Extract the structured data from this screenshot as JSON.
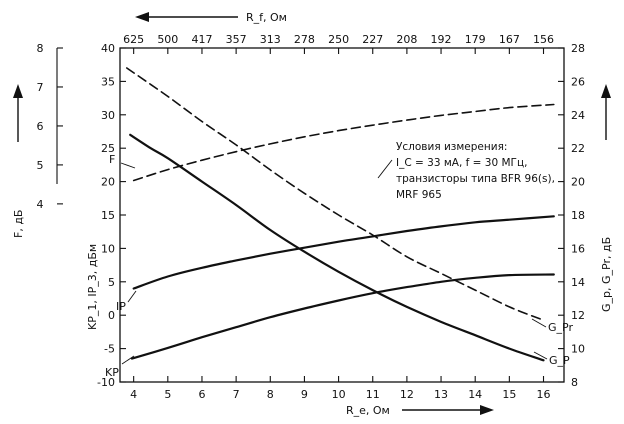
{
  "chart_data": {
    "type": "line",
    "x_axis_bottom": {
      "label": "R_e, Ом",
      "ticks": [
        4,
        5,
        6,
        7,
        8,
        9,
        10,
        11,
        12,
        13,
        14,
        15,
        16
      ],
      "range": [
        3.6,
        16.6
      ]
    },
    "x_axis_top": {
      "label": "R_f, Ом",
      "ticks": [
        "625",
        "500",
        "417",
        "357",
        "313",
        "278",
        "250",
        "227",
        "208",
        "192",
        "179",
        "167",
        "156"
      ]
    },
    "y_axis_left_inner": {
      "label": "KP_1, IP_3, дБм",
      "ticks": [
        -10,
        -5,
        0,
        5,
        10,
        15,
        20,
        25,
        30,
        35,
        40
      ],
      "range": [
        -10,
        40
      ]
    },
    "y_axis_left_outer": {
      "label": "F, дБ",
      "ticks": [
        4,
        5,
        6,
        7,
        8
      ],
      "range": [
        -0.571,
        8
      ]
    },
    "y_axis_right": {
      "label": "G_p, G_Pr, дБ",
      "ticks": [
        8,
        10,
        12,
        14,
        16,
        18,
        20,
        22,
        24,
        26,
        28
      ],
      "range": [
        8,
        28
      ]
    },
    "series": [
      {
        "name": "F",
        "axis": "left_outer",
        "style": "dashed",
        "x": [
          4.0,
          5.0,
          6.0,
          7.0,
          8.0,
          9.0,
          10.0,
          11.0,
          12.0,
          13.0,
          14.0,
          15.0,
          16.3
        ],
        "y": [
          4.6,
          4.88,
          5.12,
          5.34,
          5.54,
          5.72,
          5.88,
          6.02,
          6.15,
          6.27,
          6.37,
          6.47,
          6.55
        ]
      },
      {
        "name": "IP",
        "axis": "left_inner",
        "style": "solid",
        "x": [
          4.0,
          5.0,
          6.0,
          7.0,
          8.0,
          9.0,
          10.0,
          11.0,
          12.0,
          13.0,
          14.0,
          15.0,
          16.3
        ],
        "y": [
          4.0,
          5.8,
          7.1,
          8.2,
          9.2,
          10.1,
          11.0,
          11.8,
          12.6,
          13.3,
          13.9,
          14.3,
          14.8
        ]
      },
      {
        "name": "KP",
        "axis": "left_inner",
        "style": "solid",
        "x": [
          3.95,
          5.0,
          6.0,
          7.0,
          8.0,
          9.0,
          10.0,
          11.0,
          12.0,
          13.0,
          14.0,
          15.0,
          16.3
        ],
        "y": [
          -6.5,
          -4.9,
          -3.3,
          -1.8,
          -0.3,
          1.0,
          2.2,
          3.3,
          4.2,
          5.0,
          5.6,
          6.0,
          6.1
        ]
      },
      {
        "name": "G_p",
        "axis": "right",
        "style": "solid",
        "x": [
          3.9,
          4.5,
          5.0,
          6.0,
          7.0,
          8.0,
          9.0,
          10.0,
          11.0,
          12.0,
          13.0,
          14.0,
          15.0,
          16.0
        ],
        "y": [
          22.8,
          22.0,
          21.4,
          20.0,
          18.6,
          17.1,
          15.8,
          14.6,
          13.5,
          12.5,
          11.6,
          10.8,
          10.0,
          9.3
        ]
      },
      {
        "name": "G_Pr",
        "axis": "right",
        "style": "dashed",
        "x": [
          3.8,
          5.0,
          6.0,
          7.0,
          8.0,
          9.0,
          10.0,
          11.0,
          12.0,
          13.0,
          14.0,
          15.0,
          16.0
        ],
        "y": [
          26.8,
          25.1,
          23.6,
          22.2,
          20.7,
          19.3,
          18.0,
          16.8,
          15.5,
          14.5,
          13.5,
          12.5,
          11.7
        ]
      }
    ],
    "curve_labels": [
      "F",
      "IP",
      "KP",
      "G_P",
      "G_Pr"
    ],
    "annotation": [
      "Условия измерения:",
      "I_C = 33 мА,  f = 30 МГц,",
      "транзисторы типа BFR 96(s),",
      "MRF 965"
    ],
    "grid": false
  },
  "colors": {
    "ink": "#111111",
    "background": "#ffffff"
  }
}
